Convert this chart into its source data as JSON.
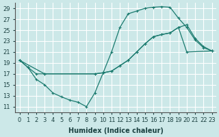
{
  "xlabel": "Humidex (Indice chaleur)",
  "xlim": [
    -0.5,
    23.5
  ],
  "ylim": [
    10,
    30
  ],
  "yticks": [
    11,
    13,
    15,
    17,
    19,
    21,
    23,
    25,
    27,
    29
  ],
  "xticks": [
    0,
    1,
    2,
    3,
    4,
    5,
    6,
    7,
    8,
    9,
    10,
    11,
    12,
    13,
    14,
    15,
    16,
    17,
    18,
    19,
    20,
    21,
    22,
    23
  ],
  "bg_color": "#cce8e8",
  "grid_color": "#ffffff",
  "line_color": "#1a7a6e",
  "line1_x": [
    0,
    1,
    2,
    3,
    4,
    5,
    6,
    7,
    8,
    9,
    10,
    11,
    12,
    13,
    14,
    15,
    16,
    17,
    18,
    19,
    20,
    21,
    22,
    23
  ],
  "line1_y": [
    19.5,
    18.2,
    16.0,
    15.0,
    13.5,
    12.8,
    12.2,
    11.8,
    11.0,
    13.5,
    17.2,
    21.0,
    25.5,
    28.0,
    28.5,
    29.0,
    29.2,
    29.3,
    29.2,
    27.2,
    25.5,
    23.2,
    21.8,
    21.2
  ],
  "line2_x": [
    0,
    1,
    2,
    3,
    9,
    10,
    11,
    12,
    13,
    14,
    15,
    16,
    17,
    18,
    19,
    20,
    21,
    22,
    23
  ],
  "line2_y": [
    19.5,
    18.2,
    17.0,
    17.0,
    17.0,
    17.2,
    17.5,
    18.5,
    19.5,
    21.0,
    22.5,
    23.8,
    24.2,
    24.5,
    25.5,
    26.0,
    23.5,
    22.0,
    21.2
  ],
  "line3_x": [
    0,
    3,
    9,
    10,
    11,
    12,
    13,
    14,
    15,
    16,
    17,
    18,
    19,
    20,
    23
  ],
  "line3_y": [
    19.5,
    17.0,
    17.0,
    17.2,
    17.5,
    18.5,
    19.5,
    21.0,
    22.5,
    23.8,
    24.2,
    24.5,
    25.5,
    21.0,
    21.2
  ]
}
